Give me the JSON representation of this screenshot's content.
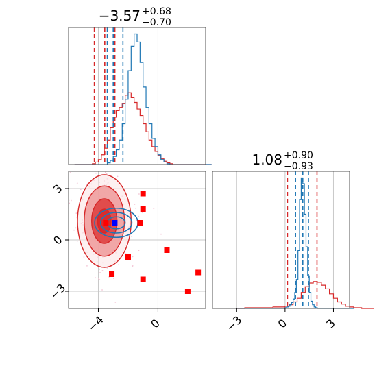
{
  "chart_data": [
    {
      "type": "histogram",
      "panel": "top-left",
      "title": {
        "value": "−3.57",
        "plus": "+0.68",
        "minus": "−0.70"
      },
      "xlim": [
        -6,
        3.2
      ],
      "xticks": [
        -4,
        0
      ],
      "grid": true,
      "series": [
        {
          "color": "#d62728",
          "bin_start": -5.6,
          "bin_width": 0.2,
          "counts": [
            0,
            0,
            0,
            0,
            0,
            0,
            1,
            3,
            6,
            12,
            20,
            30,
            45,
            58,
            66,
            70,
            75,
            85,
            88,
            82,
            76,
            68,
            60,
            50,
            40,
            30,
            22,
            16,
            11,
            7,
            4,
            2,
            1,
            0,
            0,
            0,
            0,
            0,
            0,
            0,
            0,
            0,
            0,
            0,
            0,
            0
          ],
          "quantiles": [
            -4.27,
            -3.57,
            -2.89
          ]
        },
        {
          "color": "#1f77b4",
          "bin_start": -5.6,
          "bin_width": 0.2,
          "counts": [
            0,
            0,
            0,
            0,
            0,
            0,
            0,
            0,
            0,
            0,
            0,
            2,
            5,
            10,
            18,
            30,
            50,
            80,
            115,
            145,
            160,
            150,
            125,
            95,
            70,
            50,
            32,
            22,
            12,
            6,
            3,
            1,
            0,
            0,
            0,
            0,
            0,
            0,
            0,
            0,
            0,
            0,
            0,
            0,
            0,
            0
          ],
          "quantiles": [
            -3.4,
            -3.0,
            -2.35
          ]
        }
      ]
    },
    {
      "type": "scatter",
      "panel": "bottom-left",
      "xlim": [
        -6,
        3.2
      ],
      "ylim": [
        -4,
        4
      ],
      "xticks": [
        -4,
        0
      ],
      "yticks": [
        -3,
        0,
        3
      ],
      "grid": true,
      "markers": {
        "color": "#ff0000",
        "points": [
          [
            -3.5,
            1.0
          ],
          [
            -1.0,
            2.7
          ],
          [
            -1.0,
            1.8
          ],
          [
            -1.2,
            1.0
          ],
          [
            -2.0,
            -1.0
          ],
          [
            0.6,
            -0.6
          ],
          [
            -3.1,
            -2.0
          ],
          [
            -1.0,
            -2.3
          ],
          [
            2.7,
            -1.9
          ],
          [
            2.0,
            -3.0
          ]
        ]
      },
      "truth_marker": {
        "color": "#0000ff",
        "point": [
          -2.9,
          1.0
        ]
      },
      "contours": [
        {
          "color": "#d62728",
          "center": [
            -3.6,
            1.1
          ],
          "levels": [
            [
              1.8,
              2.7
            ],
            [
              1.35,
              2.05
            ],
            [
              0.85,
              1.3
            ],
            [
              0.45,
              0.7
            ]
          ]
        },
        {
          "color": "#1f77b4",
          "center": [
            -2.8,
            1.0
          ],
          "levels": [
            [
              1.45,
              0.85
            ],
            [
              1.05,
              0.6
            ],
            [
              0.6,
              0.35
            ]
          ]
        }
      ]
    },
    {
      "type": "histogram",
      "panel": "bottom-right",
      "title": {
        "value": "1.08",
        "plus": "+0.90",
        "minus": "−0.93"
      },
      "xlim": [
        -4.5,
        4
      ],
      "xticks": [
        -3,
        0,
        3
      ],
      "grid": true,
      "series": [
        {
          "color": "#d62728",
          "bin_start": -3.0,
          "bin_width": 0.25,
          "counts": [
            0,
            0,
            1,
            1,
            1,
            1,
            1,
            1,
            1,
            2,
            2,
            2,
            3,
            5,
            9,
            14,
            22,
            30,
            35,
            37,
            36,
            32,
            27,
            20,
            14,
            9,
            6,
            3,
            2,
            1,
            1,
            0,
            0,
            0
          ],
          "quantiles": [
            0.15,
            1.08,
            1.98
          ]
        },
        {
          "color": "#1f77b4",
          "bin_start": -3.0,
          "bin_width": 0.1,
          "counts": [
            0,
            0,
            0,
            0,
            0,
            0,
            0,
            0,
            0,
            0,
            0,
            0,
            0,
            0,
            0,
            0,
            0,
            0,
            0,
            0,
            0,
            0,
            0,
            0,
            0,
            0,
            0,
            0,
            0,
            0,
            1,
            2,
            3,
            5,
            8,
            13,
            22,
            40,
            80,
            150,
            180,
            172,
            130,
            85,
            45,
            22,
            10,
            5,
            2,
            1,
            0,
            0,
            0,
            0,
            0,
            0,
            0,
            0,
            0,
            0,
            0,
            0,
            0,
            0,
            0,
            0,
            0,
            0,
            0,
            0,
            0,
            0,
            0
          ],
          "quantiles": [
            0.65,
            1.1,
            1.45
          ]
        }
      ]
    }
  ]
}
